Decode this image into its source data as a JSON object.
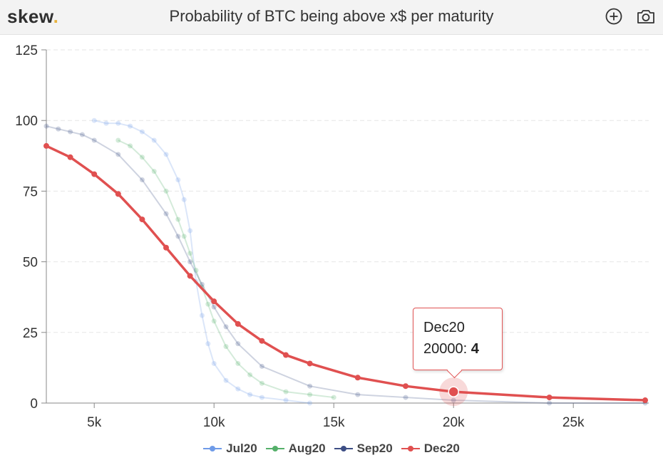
{
  "header": {
    "logo_text": "skew",
    "logo_dot": ".",
    "title": "Probability of BTC being above x$ per maturity",
    "icons": [
      "zoom-plus-icon",
      "camera-icon"
    ]
  },
  "tooltip": {
    "series": "Dec20",
    "x_label": "20000:",
    "value": "4"
  },
  "legend": [
    {
      "label": "Jul20",
      "color": "#6f9be8"
    },
    {
      "label": "Aug20",
      "color": "#55b06a"
    },
    {
      "label": "Sep20",
      "color": "#3d4e85"
    },
    {
      "label": "Dec20",
      "color": "#e05050"
    }
  ],
  "chart_data": {
    "type": "line",
    "title": "Probability of BTC being above x$ per maturity",
    "xlim": [
      3000,
      28000
    ],
    "ylim": [
      0,
      125
    ],
    "x_ticks": [
      5000,
      10000,
      15000,
      20000,
      25000
    ],
    "x_tick_labels": [
      "5k",
      "10k",
      "15k",
      "20k",
      "25k"
    ],
    "y_ticks": [
      0,
      25,
      50,
      75,
      100,
      125
    ],
    "y_tick_labels": [
      "0",
      "25",
      "50",
      "75",
      "100",
      "125"
    ],
    "grid": true,
    "legend_position": "bottom",
    "highlight": {
      "series": "Dec20",
      "x": 20000,
      "y": 4
    },
    "series": [
      {
        "name": "Jul20",
        "color": "#6f9be8",
        "faded": true,
        "x": [
          5000,
          5500,
          6000,
          6500,
          7000,
          7500,
          8000,
          8500,
          8750,
          9000,
          9250,
          9500,
          9750,
          10000,
          10500,
          11000,
          11500,
          12000,
          13000,
          14000
        ],
        "y": [
          100,
          99,
          99,
          98,
          96,
          93,
          88,
          79,
          72,
          61,
          43,
          31,
          21,
          14,
          8,
          5,
          3,
          2,
          1,
          0
        ]
      },
      {
        "name": "Aug20",
        "color": "#55b06a",
        "faded": true,
        "x": [
          6000,
          6500,
          7000,
          7500,
          8000,
          8500,
          8750,
          9000,
          9250,
          9500,
          9750,
          10000,
          10500,
          11000,
          11500,
          12000,
          13000,
          14000,
          15000
        ],
        "y": [
          93,
          91,
          87,
          82,
          75,
          65,
          59,
          53,
          47,
          41,
          35,
          29,
          20,
          14,
          10,
          7,
          4,
          3,
          2
        ]
      },
      {
        "name": "Sep20",
        "color": "#3d4e85",
        "faded": true,
        "x": [
          3000,
          3500,
          4000,
          4500,
          5000,
          6000,
          7000,
          8000,
          8500,
          9000,
          9500,
          10000,
          10500,
          11000,
          12000,
          14000,
          16000,
          18000,
          20000,
          24000,
          28000
        ],
        "y": [
          98,
          97,
          96,
          95,
          93,
          88,
          79,
          67,
          59,
          50,
          42,
          34,
          27,
          21,
          13,
          6,
          3,
          2,
          1,
          0,
          0
        ]
      },
      {
        "name": "Dec20",
        "color": "#e05050",
        "faded": false,
        "x": [
          3000,
          4000,
          5000,
          6000,
          7000,
          8000,
          9000,
          10000,
          11000,
          12000,
          13000,
          14000,
          16000,
          18000,
          20000,
          24000,
          28000
        ],
        "y": [
          91,
          87,
          81,
          74,
          65,
          55,
          45,
          36,
          28,
          22,
          17,
          14,
          9,
          6,
          4,
          2,
          1
        ]
      }
    ]
  }
}
